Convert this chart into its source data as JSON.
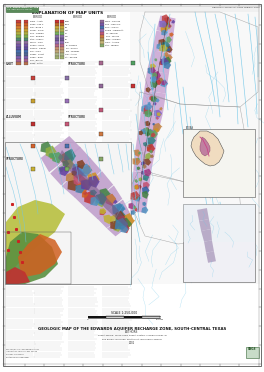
{
  "background_color": "#ffffff",
  "border_color": "#777777",
  "header_green_bg": "#4a7c4a",
  "header_green_text": "#ffffff",
  "river_color": "#6ec6e8",
  "fault_color": "#444444",
  "county_line_color": "#999999",
  "recharge_main_color": "#b090c0",
  "recharge_dark": "#6a5080",
  "geo_colors": [
    "#c03030",
    "#d06020",
    "#d09020",
    "#c0b030",
    "#90b040",
    "#50a060",
    "#308080",
    "#3060a0",
    "#6040a0",
    "#a03080",
    "#c05070",
    "#804020",
    "#a07040",
    "#60a060",
    "#4080b0",
    "#8060c0",
    "#c08040",
    "#408040",
    "#c04040",
    "#5090c0"
  ],
  "legend_swatches": [
    {
      "color": "#c8403a",
      "label": "Kaus - Austin Chalk"
    },
    {
      "color": "#d4602a",
      "label": "Kpen - Pen Chalk"
    },
    {
      "color": "#d88030",
      "label": "Kbr - Buda Limestone"
    },
    {
      "color": "#c8a030",
      "label": "Kcom - Del Rio Clay"
    },
    {
      "color": "#b0b040",
      "label": "Kud - Georgetown Fm"
    },
    {
      "color": "#80b050",
      "label": "Kdc - Edwards Limestone"
    },
    {
      "color": "#508870",
      "label": "Ktm - Kiamichi Fm"
    },
    {
      "color": "#9070a0",
      "label": "Kglen - Glen Rose Ls"
    },
    {
      "color": "#7858a8",
      "label": "Khens - Hensel Sand"
    },
    {
      "color": "#6050a0",
      "label": "Kbuda - Hammett Shale"
    },
    {
      "color": "#4870b0",
      "label": "Kre - Sligo Fm"
    },
    {
      "color": "#506898",
      "label": "Kpaw - Hosston Fm"
    },
    {
      "color": "#8060b0",
      "label": "Kbfm - Travis Peak Fm"
    },
    {
      "color": "#a86090",
      "label": "Krp - Bossier Shale"
    },
    {
      "color": "#b87050",
      "label": "Kbfa - Cotton Valley Gp"
    }
  ],
  "legend_swatches2": [
    {
      "color": "#c83030",
      "label": "Kper"
    },
    {
      "color": "#c06828",
      "label": "Kbr2"
    },
    {
      "color": "#c8a838",
      "label": "Kb"
    },
    {
      "color": "#b0b050",
      "label": "Kgt"
    },
    {
      "color": "#78b060",
      "label": "Ke"
    },
    {
      "color": "#8870a8",
      "label": "Kgr"
    },
    {
      "color": "#705898",
      "label": "Kh"
    },
    {
      "color": "#9870b8",
      "label": "Khm"
    },
    {
      "color": "#b86888",
      "label": "Te - Eocene"
    },
    {
      "color": "#c89070",
      "label": "Tou - Wilcox Gp"
    },
    {
      "color": "#c0a878",
      "label": "Twu - Midway Gp"
    },
    {
      "color": "#b0b888",
      "label": "Qal - Alluvium"
    },
    {
      "color": "#a0b070",
      "label": "Qt - Terrace deposits"
    }
  ],
  "legend_swatches3": [
    {
      "color": "#906898",
      "label": "Kgr2 - Glen Rose Ls"
    },
    {
      "color": "#7858a8",
      "label": "Kh2 - Hensel Sand"
    },
    {
      "color": "#4870b0",
      "label": "Ksl2 - Sligo Fm"
    },
    {
      "color": "#9870b8",
      "label": "Khm2 - Hammett"
    },
    {
      "color": "#c05878",
      "label": "Tp - Pearsall Fm"
    },
    {
      "color": "#d07840",
      "label": "Tou2 - Wilcox Gp"
    },
    {
      "color": "#b09858",
      "label": "Twu2 - Midway Gp"
    },
    {
      "color": "#c8b878",
      "label": "Qal2 - Alluvium"
    },
    {
      "color": "#88a868",
      "label": "Qt2 - Terrace"
    }
  ],
  "title_text": "GEOLOGIC MAP OF THE EDWARDS AQUIFER RECHARGE ZONE, SOUTH-CENTRAL TEXAS",
  "authors_text": "Robert Blome, Lance Land, Robert Pantea, Claudia Iriondo, Glenn Brown, Ian Jones, Scott Hunt, and Sharon Mosher",
  "scale_text": "SCALE 1:250,000"
}
